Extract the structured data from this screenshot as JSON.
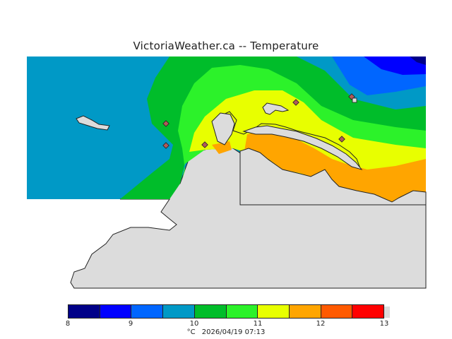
{
  "header": {
    "title": "VictoriaWeather.ca -- Temperature"
  },
  "map": {
    "colors": {
      "land": "#dcdcdc",
      "band_10_105": "#0099c6",
      "band_105_11": "#00bd2a",
      "band_11_115": "#2cf22a",
      "band_115_12": "#e8ff00",
      "band_12_125": "#ffa500",
      "band_8_85": "#0000a8",
      "band_85_9": "#0000ff",
      "station_marker": "#b05a5a"
    }
  },
  "legend": {
    "colors": [
      "#000088",
      "#0000ff",
      "#0066ff",
      "#0099c6",
      "#00bd2a",
      "#2cf22a",
      "#e8ff00",
      "#ffa500",
      "#ff5a00",
      "#ff0000"
    ],
    "ticks": [
      "8",
      "9",
      "10",
      "11",
      "12",
      "13"
    ],
    "unit": "°C",
    "timestamp": "2026/04/19 07:13"
  }
}
